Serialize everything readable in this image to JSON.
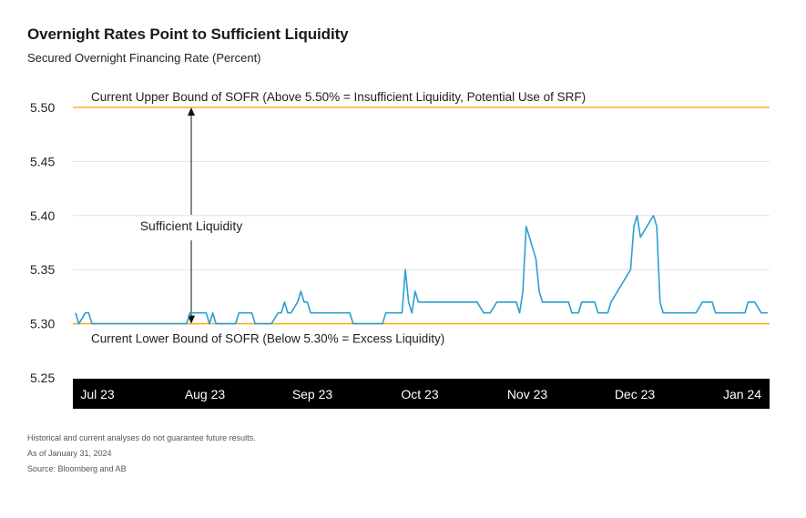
{
  "header": {
    "title": "Overnight Rates Point to Sufficient Liquidity",
    "subtitle": "Secured Overnight Financing Rate (Percent)"
  },
  "footnotes": {
    "note": "Historical and current analyses do not guarantee future results.",
    "as_of": "As of January 31, 2024",
    "source": "Source: Bloomberg and AB"
  },
  "colors": {
    "series": "#2b9fd1",
    "bound": "#f5b41a",
    "axis_band": "#000000",
    "grid": "#e2e2e2"
  },
  "chart_data": {
    "type": "line",
    "ylim": [
      5.25,
      5.5
    ],
    "yticks": [
      "5.25",
      "5.30",
      "5.35",
      "5.40",
      "5.45",
      "5.50"
    ],
    "xlabels": [
      "Jul 23",
      "Aug 23",
      "Sep 23",
      "Oct 23",
      "Nov 23",
      "Dec 23",
      "Jan 24"
    ],
    "grid": true,
    "reference_lines": [
      {
        "y": 5.5,
        "label": "Current Upper Bound of SOFR (Above 5.50% = Insufficient Liquidity, Potential Use of SRF)"
      },
      {
        "y": 5.3,
        "label": "Current Lower Bound of SOFR (Below 5.30% = Excess Liquidity)"
      }
    ],
    "annotation": "Sufficient Liquidity",
    "series": [
      {
        "values": [
          5.31,
          5.3,
          5.305,
          5.31,
          5.31,
          5.3,
          5.3,
          5.3,
          5.3,
          5.3,
          5.3,
          5.3,
          5.3,
          5.3,
          5.3,
          5.3,
          5.3,
          5.3,
          5.3,
          5.3,
          5.3,
          5.3,
          5.3,
          5.3,
          5.3,
          5.3,
          5.3,
          5.3,
          5.3,
          5.3,
          5.3,
          5.3,
          5.3,
          5.3,
          5.3,
          5.31,
          5.31,
          5.31,
          5.31,
          5.31,
          5.31,
          5.3,
          5.31,
          5.3,
          5.3,
          5.3,
          5.3,
          5.3,
          5.3,
          5.3,
          5.31,
          5.31,
          5.31,
          5.31,
          5.31,
          5.3,
          5.3,
          5.3,
          5.3,
          5.3,
          5.3,
          5.305,
          5.31,
          5.31,
          5.32,
          5.31,
          5.31,
          5.315,
          5.32,
          5.33,
          5.32,
          5.32,
          5.31,
          5.31,
          5.31,
          5.31,
          5.31,
          5.31,
          5.31,
          5.31,
          5.31,
          5.31,
          5.31,
          5.31,
          5.31,
          5.3,
          5.3,
          5.3,
          5.3,
          5.3,
          5.3,
          5.3,
          5.3,
          5.3,
          5.3,
          5.31,
          5.31,
          5.31,
          5.31,
          5.31,
          5.31,
          5.35,
          5.32,
          5.31,
          5.33,
          5.32,
          5.32,
          5.32,
          5.32,
          5.32,
          5.32,
          5.32,
          5.32,
          5.32,
          5.32,
          5.32,
          5.32,
          5.32,
          5.32,
          5.32,
          5.32,
          5.32,
          5.32,
          5.32,
          5.315,
          5.31,
          5.31,
          5.31,
          5.315,
          5.32,
          5.32,
          5.32,
          5.32,
          5.32,
          5.32,
          5.32,
          5.31,
          5.33,
          5.39,
          5.38,
          5.37,
          5.36,
          5.33,
          5.32,
          5.32,
          5.32,
          5.32,
          5.32,
          5.32,
          5.32,
          5.32,
          5.32,
          5.31,
          5.31,
          5.31,
          5.32,
          5.32,
          5.32,
          5.32,
          5.32,
          5.31,
          5.31,
          5.31,
          5.31,
          5.32,
          5.325,
          5.33,
          5.335,
          5.34,
          5.345,
          5.35,
          5.39,
          5.4,
          5.38,
          5.385,
          5.39,
          5.395,
          5.4,
          5.39,
          5.32,
          5.31,
          5.31,
          5.31,
          5.31,
          5.31,
          5.31,
          5.31,
          5.31,
          5.31,
          5.31,
          5.31,
          5.315,
          5.32,
          5.32,
          5.32,
          5.32,
          5.31,
          5.31,
          5.31,
          5.31,
          5.31,
          5.31,
          5.31,
          5.31,
          5.31,
          5.31,
          5.32,
          5.32,
          5.32,
          5.315,
          5.31,
          5.31,
          5.31
        ]
      }
    ]
  }
}
